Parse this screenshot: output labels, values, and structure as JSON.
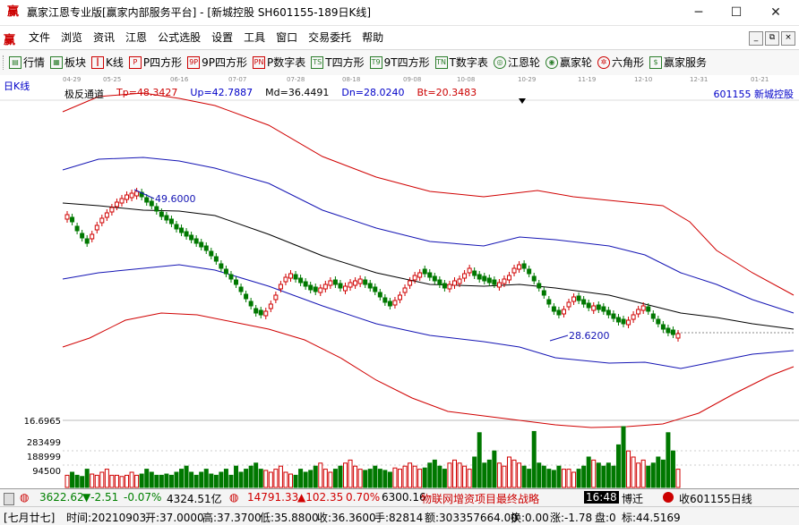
{
  "window": {
    "title": "赢家江恩专业版[赢家内部服务平台] - [新城控股  SH601155-189日K线]",
    "app_icon": "赢",
    "minimize": "─",
    "maximize": "☐",
    "close": "✕"
  },
  "menubar": {
    "logo": "赢",
    "items": [
      "文件",
      "浏览",
      "资讯",
      "江恩",
      "公式选股",
      "设置",
      "工具",
      "窗口",
      "交易委托",
      "帮助"
    ],
    "mdi": [
      "_",
      "⧉",
      "×"
    ]
  },
  "toolbar": {
    "items": [
      {
        "icon": "chart-icon",
        "glyph": "▤",
        "label": "行情"
      },
      {
        "icon": "grid-icon",
        "glyph": "▦",
        "label": "板块"
      },
      {
        "icon": "candle-icon",
        "glyph": "┃",
        "label": "K线"
      },
      {
        "icon": "p-square-icon",
        "glyph": "P",
        "label": "P四方形"
      },
      {
        "icon": "9p-square-icon",
        "glyph": "9P",
        "label": "9P四方形"
      },
      {
        "icon": "pn-icon",
        "glyph": "PN",
        "label": "P数字表"
      },
      {
        "icon": "t-square-icon",
        "glyph": "TS",
        "label": "T四方形"
      },
      {
        "icon": "9t-square-icon",
        "glyph": "T9",
        "label": "9T四方形"
      },
      {
        "icon": "tn-icon",
        "glyph": "TN",
        "label": "T数字表"
      },
      {
        "icon": "gann-wheel-icon",
        "glyph": "◎",
        "label": "江恩轮"
      },
      {
        "icon": "winner-wheel-icon",
        "glyph": "◉",
        "label": "赢家轮"
      },
      {
        "icon": "hexagon-icon",
        "glyph": "✲",
        "label": "六角形"
      },
      {
        "icon": "service-icon",
        "glyph": "$",
        "label": "赢家服务"
      }
    ]
  },
  "chart_header": {
    "period": "日K线",
    "indicator": "极反通道",
    "tp": "Tp=48.3427",
    "up": "Up=42.7887",
    "md": "Md=36.4491",
    "dn": "Dn=28.0240",
    "bt": "Bt=20.3483",
    "stock": "601155  新城控股",
    "dates": [
      "04-29",
      "05-25",
      "06-16",
      "07-07",
      "07-28",
      "08-18",
      "09-08",
      "10-08",
      "10-29",
      "11-19",
      "12-10",
      "12-31",
      "01-21"
    ]
  },
  "chart_data": {
    "type": "candlestick",
    "annotations": [
      {
        "label": "49.6000",
        "kind": "high"
      },
      {
        "label": "28.6200",
        "kind": "low"
      }
    ],
    "volume_axis": [
      "16.6965",
      "283499",
      "188999",
      "94500"
    ],
    "bands": [
      "Tp",
      "Up",
      "Md",
      "Dn",
      "Bt"
    ]
  },
  "status1": {
    "sh_index": "3622.62",
    "sh_change": "▼-2.51",
    "sh_pct": "-0.07%",
    "sh_amount": "4324.51亿",
    "sz_index": "14791.33",
    "sz_change": "▲102.35",
    "sz_pct": "0.70%",
    "sz_amount": "6300.16",
    "news": "物联网增资项目最终战略",
    "time": "16:48",
    "user": "博迁",
    "quote_label": "收601155日线"
  },
  "status2": {
    "date_cn": "[七月廿七]",
    "time": "时间:20210903",
    "open": "开:37.0000",
    "high": "高:37.3700",
    "low": "低:35.8800",
    "close": "收:36.3600",
    "hand": "手:82814",
    "amount": "额:303357664.00",
    "turnover": "换:0.00",
    "change": "涨:-1.78",
    "pan": "盘:0",
    "mark": "标:44.5169"
  }
}
